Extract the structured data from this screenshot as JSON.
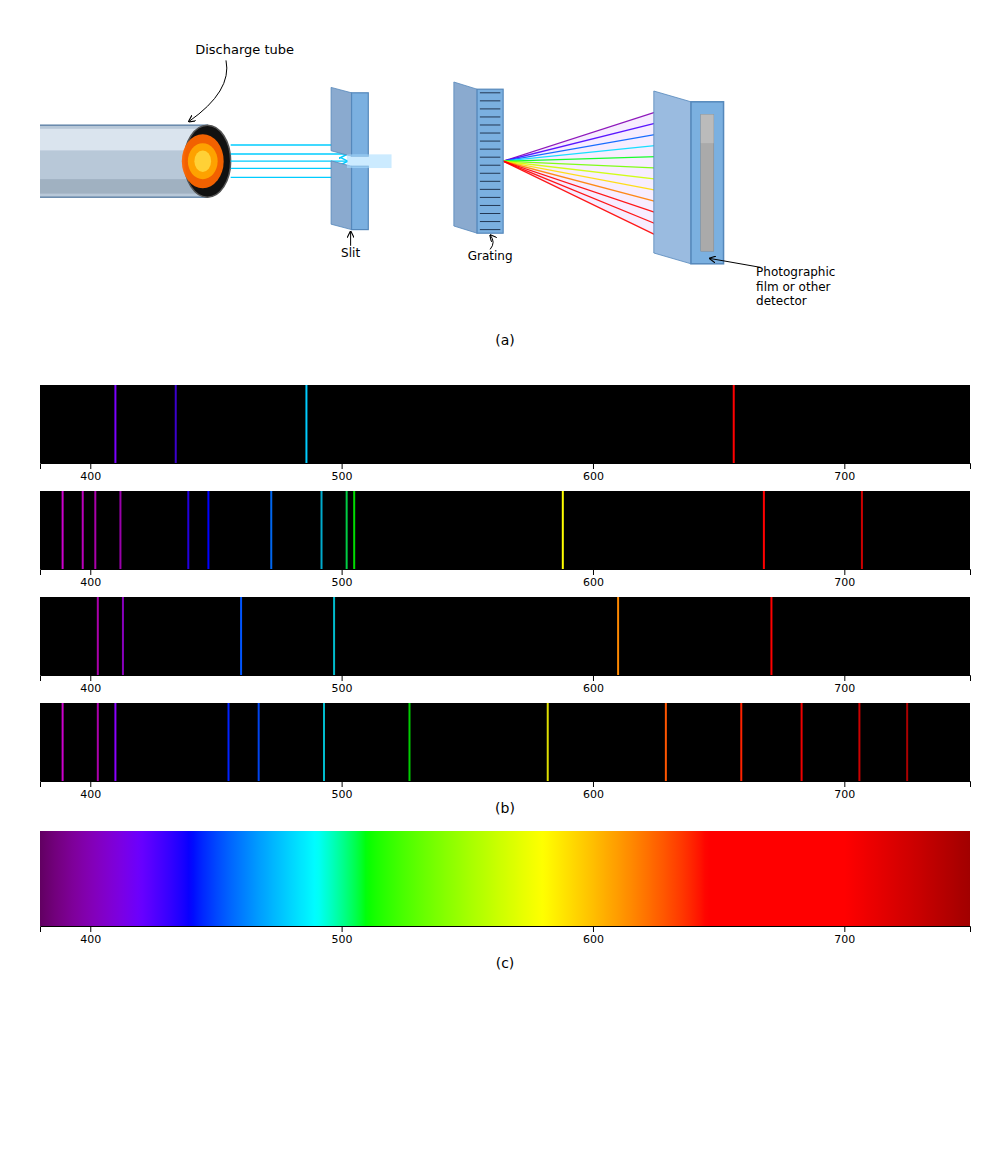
{
  "chart_data": [
    {
      "type": "diagram",
      "annotations": [
        "Discharge tube",
        "Slit",
        "Grating",
        "Photographic\nfilm or other\ndetector",
        "(a)"
      ]
    },
    {
      "type": "spectrum",
      "xlim": [
        380,
        750
      ],
      "xticks": [
        400,
        500,
        600,
        700
      ],
      "tick_labels": "x",
      "annotations": [
        "(b)"
      ],
      "series": [
        {
          "values": [
            410,
            434,
            486,
            656
          ],
          "colors": [
            "#7B00FF",
            "#3B00CC",
            "#00CCFF",
            "#FF0000"
          ]
        },
        {
          "values": [
            389,
            397,
            402,
            412,
            439,
            447,
            472,
            492,
            502,
            505,
            588,
            668,
            707
          ],
          "colors": [
            "#CC00CC",
            "#BB00BB",
            "#AA00AA",
            "#9900AA",
            "#2200DD",
            "#0000FF",
            "#0066EE",
            "#00AACC",
            "#00CC44",
            "#00DD00",
            "#FFFF00",
            "#FF0000",
            "#CC0000"
          ]
        },
        {
          "values": [
            403,
            413,
            460,
            497,
            610,
            671
          ],
          "colors": [
            "#AA00AA",
            "#8800BB",
            "#0055FF",
            "#00BBCC",
            "#FF8800",
            "#FF0000"
          ]
        },
        {
          "values": [
            389,
            403,
            410,
            455,
            467,
            493,
            527,
            582,
            629,
            659,
            683,
            706,
            725
          ],
          "colors": [
            "#CC00CC",
            "#AA00AA",
            "#8B00FF",
            "#0022FF",
            "#0044EE",
            "#00BBCC",
            "#00CC00",
            "#DDDD00",
            "#FF5500",
            "#FF2200",
            "#EE0000",
            "#CC0000",
            "#AA0000"
          ]
        }
      ]
    },
    {
      "type": "gradient",
      "xlim": [
        380,
        750
      ],
      "xticks": [
        400,
        500,
        600,
        700
      ],
      "tick_labels": "x",
      "annotations": [
        "(c)"
      ]
    }
  ]
}
